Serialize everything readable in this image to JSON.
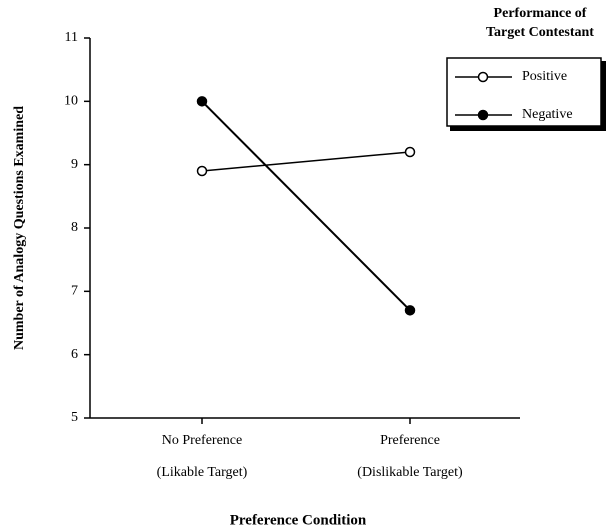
{
  "chart_data": {
    "type": "line",
    "y_label": "Number of Analogy Questions Examined",
    "x_label": "Preference Condition",
    "categories": [
      "No Preference",
      "Preference"
    ],
    "category_notes": [
      "(Likable Target)",
      "(Dislikable Target)"
    ],
    "legend_title": [
      "Performance of",
      "Target Contestant"
    ],
    "series": [
      {
        "name": "Positive",
        "color": "#000000",
        "marker": "open",
        "values": [
          8.9,
          9.2
        ]
      },
      {
        "name": "Negative",
        "color": "#000000",
        "marker": "filled",
        "values": [
          10.0,
          6.7
        ]
      }
    ],
    "ylim": [
      5,
      11
    ],
    "yticks": [
      5,
      6,
      7,
      8,
      9,
      10,
      11
    ],
    "legend": "upper right"
  }
}
